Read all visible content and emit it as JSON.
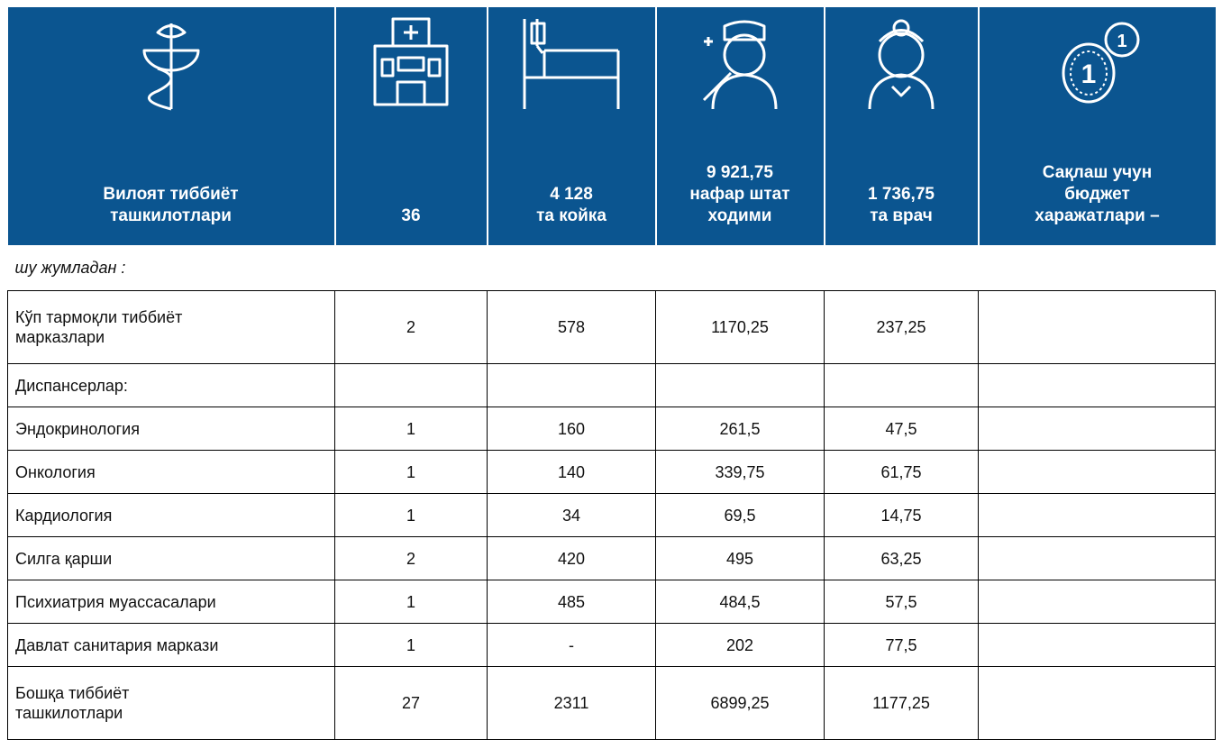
{
  "header": [
    "Вилоят тиббиёт\nташкилотлари",
    "36",
    "4 128\nта койка",
    "9 921,75\nнафар штат\nходими",
    "1 736,75\nта врач",
    "Сақлаш учун\nбюджет\nхаражатлари –"
  ],
  "section_note": "шу жумладан :",
  "rows": [
    [
      "Кўп тармоқли тиббиёт\nмарказлари",
      "2",
      "578",
      "1170,25",
      "237,25"
    ],
    [
      "Диспансерлар:"
    ],
    [
      "Эндокринология",
      "1",
      "160",
      "261,5",
      "47,5"
    ],
    [
      "Онкология",
      "1",
      "140",
      "339,75",
      "61,75"
    ],
    [
      "Кардиология",
      "1",
      "34",
      "69,5",
      "14,75"
    ],
    [
      "Силга қарши",
      "2",
      "420",
      "495",
      "63,25"
    ],
    [
      "Психиатрия муассасалари",
      "1",
      "485",
      "484,5",
      "57,5"
    ],
    [
      "Давлат санитария маркази",
      "1",
      "-",
      "202",
      "77,5"
    ],
    [
      "Бошқа тиббиёт\nташкилотлари",
      "27",
      "2311",
      "6899,25",
      "1177,25"
    ]
  ]
}
